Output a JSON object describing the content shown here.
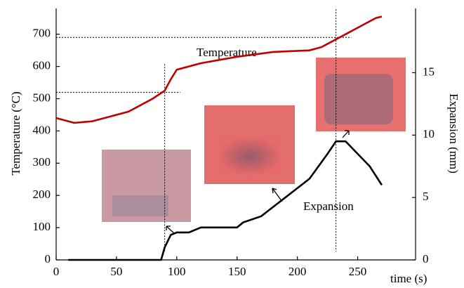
{
  "chart_data": {
    "type": "line",
    "x_label": "time (s)",
    "y_label": "Temperature (°C)",
    "y2_label": "Expansion (mm)",
    "xlim": [
      0,
      298
    ],
    "xticks": [
      0,
      50,
      100,
      150,
      200,
      250
    ],
    "ylim": [
      0,
      780
    ],
    "yticks": [
      0,
      100,
      200,
      300,
      400,
      500,
      600,
      700
    ],
    "y2lim": [
      0,
      20.15
    ],
    "y2ticks": [
      0,
      5,
      10,
      15
    ],
    "series": [
      {
        "name": "Temperature",
        "color": "#c00000",
        "x": [
          0,
          15,
          30,
          60,
          80,
          90,
          95,
          100,
          120,
          150,
          180,
          210,
          220,
          235,
          250,
          265,
          270
        ],
        "values": [
          440,
          425,
          430,
          460,
          500,
          525,
          560,
          590,
          610,
          630,
          645,
          650,
          660,
          690,
          720,
          750,
          755
        ]
      },
      {
        "name": "Expansion",
        "color": "#000000",
        "axis": "y2",
        "x": [
          10,
          87,
          90,
          95,
          100,
          110,
          120,
          150,
          155,
          170,
          190,
          210,
          225,
          232,
          240,
          250,
          260,
          270
        ],
        "values": [
          0,
          0,
          1,
          2,
          2.2,
          2.2,
          2.6,
          2.6,
          3,
          3.5,
          5,
          6.5,
          8.5,
          9.5,
          9.5,
          8.5,
          7.5,
          6
        ]
      }
    ],
    "reference_lines": [
      {
        "x": 90,
        "y": 520
      },
      {
        "x": 232,
        "y": 690
      }
    ]
  }
}
